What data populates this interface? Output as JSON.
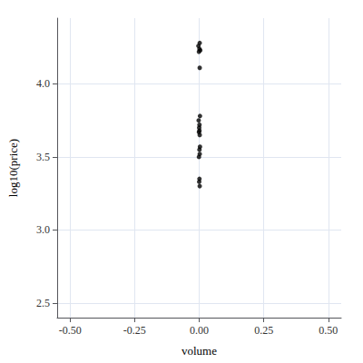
{
  "chart_data": {
    "type": "scatter",
    "x": [
      0.002,
      -0.003,
      0.001,
      0.004,
      -0.001,
      0.002,
      0.003,
      -0.002,
      0.001,
      0.0,
      0.001,
      -0.001,
      0.002,
      0.003,
      0.001,
      0.002,
      -0.001,
      0.001,
      0.0,
      0.002
    ],
    "values": [
      4.28,
      4.26,
      4.24,
      4.23,
      4.22,
      4.11,
      3.78,
      3.75,
      3.72,
      3.7,
      3.68,
      3.67,
      3.65,
      3.57,
      3.55,
      3.52,
      3.5,
      3.35,
      3.33,
      3.3
    ],
    "xlabel": "volume",
    "ylabel": "log10(price)",
    "xlim": [
      -0.55,
      0.55
    ],
    "xticks": [
      {
        "value": -0.5,
        "label": "-0.50"
      },
      {
        "value": -0.25,
        "label": "-0.25"
      },
      {
        "value": 0,
        "label": "0.00"
      },
      {
        "value": 0.25,
        "label": "0.25"
      },
      {
        "value": 0.5,
        "label": "0.50"
      }
    ],
    "ylim": [
      2.4,
      4.45
    ],
    "yticks": [
      2.5,
      {
        "value": 3,
        "label": "3.0"
      },
      3.5,
      {
        "value": 4,
        "label": "4.0"
      }
    ],
    "color": "#000000",
    "grid": true
  }
}
